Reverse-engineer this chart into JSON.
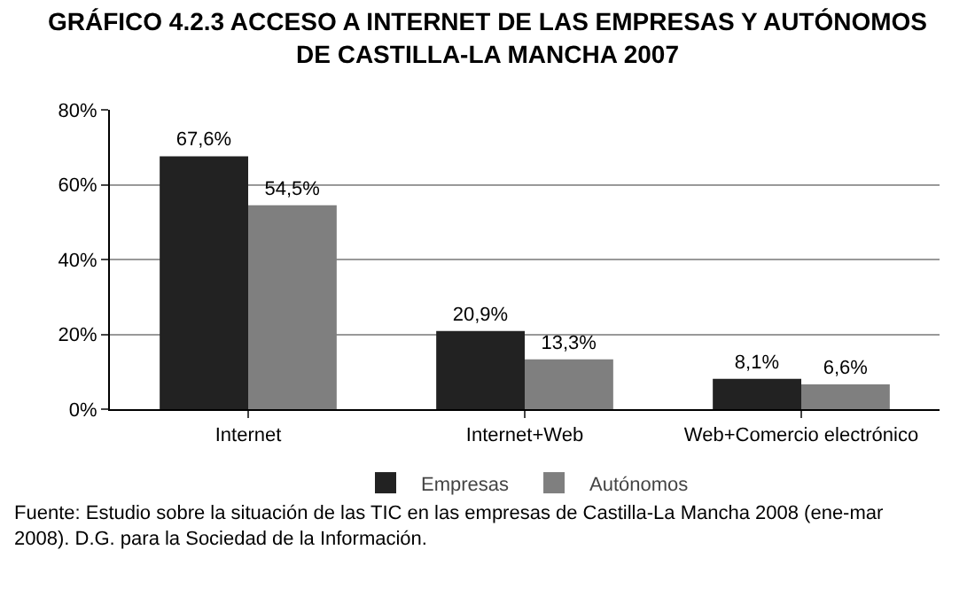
{
  "chart_data": {
    "type": "bar",
    "title": "GRÁFICO 4.2.3 ACCESO A INTERNET DE LAS EMPRESAS Y AUTÓNOMOS\nDE CASTILLA-LA MANCHA 2007",
    "categories": [
      "Internet",
      "Internet+Web",
      "Web+Comercio electrónico"
    ],
    "series": [
      {
        "name": "Empresas",
        "color": "#222222",
        "values": [
          67.6,
          20.9,
          8.1
        ],
        "value_labels": [
          "67,6%",
          "20,9%",
          "8,1%"
        ]
      },
      {
        "name": "Autónomos",
        "color": "#7f7f7f",
        "values": [
          54.5,
          13.3,
          6.6
        ],
        "value_labels": [
          "54,5%",
          "13,3%",
          "6,6%"
        ]
      }
    ],
    "ylim": [
      0,
      80
    ],
    "yticks": [
      {
        "value": 0,
        "label": "0%"
      },
      {
        "value": 20,
        "label": "20%"
      },
      {
        "value": 40,
        "label": "40%"
      },
      {
        "value": 60,
        "label": "60%"
      },
      {
        "value": 80,
        "label": "80%"
      }
    ],
    "grid": "y",
    "legend": "bottom",
    "annotations": [
      "Fuente: Estudio sobre la situación de las TIC en las empresas de Castilla-La Mancha 2008 (ene-mar\n2008). D.G. para la Sociedad de la Información."
    ]
  }
}
